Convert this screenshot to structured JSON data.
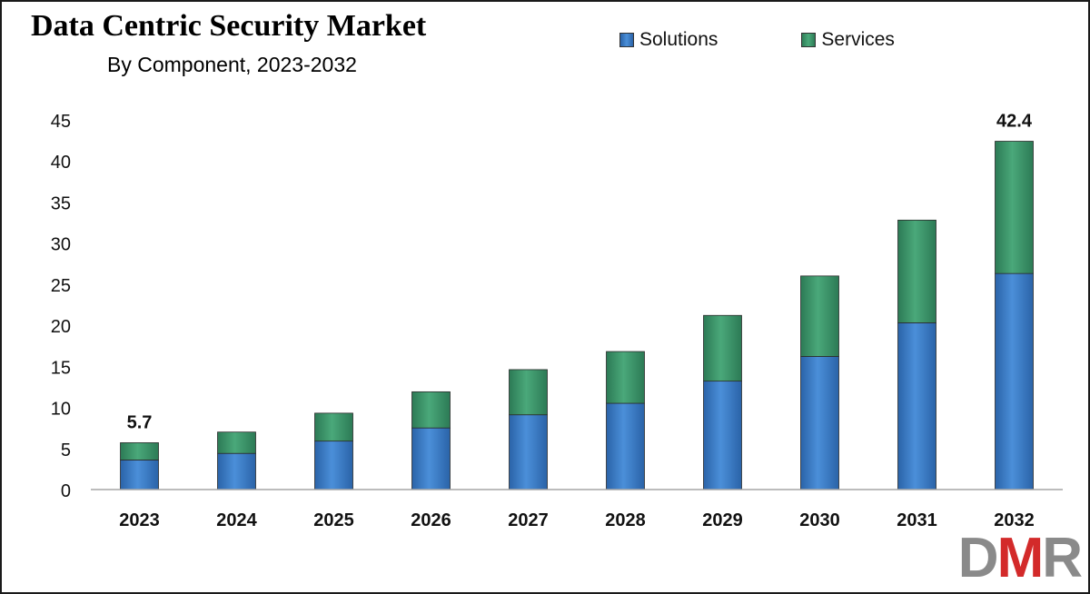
{
  "chart_data": {
    "type": "bar",
    "stacked": true,
    "title": "Data Centric Security Market",
    "subtitle": "By Component, 2023-2032",
    "categories": [
      "2023",
      "2024",
      "2025",
      "2026",
      "2027",
      "2028",
      "2029",
      "2030",
      "2031",
      "2032"
    ],
    "series": [
      {
        "name": "Solutions",
        "color": "#3b7ccc",
        "values": [
          3.6,
          4.4,
          5.9,
          7.5,
          9.1,
          10.5,
          13.2,
          16.2,
          20.3,
          26.3
        ]
      },
      {
        "name": "Services",
        "color": "#3f9a6c",
        "values": [
          2.1,
          2.6,
          3.4,
          4.4,
          5.5,
          6.3,
          8.0,
          9.8,
          12.5,
          16.1
        ]
      }
    ],
    "data_labels": [
      {
        "category": "2023",
        "text": "5.7"
      },
      {
        "category": "2032",
        "text": "42.4"
      }
    ],
    "ylim": [
      0,
      45
    ],
    "yticks": [
      0,
      5,
      10,
      15,
      20,
      25,
      30,
      35,
      40,
      45
    ],
    "grid": false,
    "legend_position": "top-right"
  },
  "logo": {
    "letters": [
      "D",
      "M",
      "R"
    ]
  }
}
